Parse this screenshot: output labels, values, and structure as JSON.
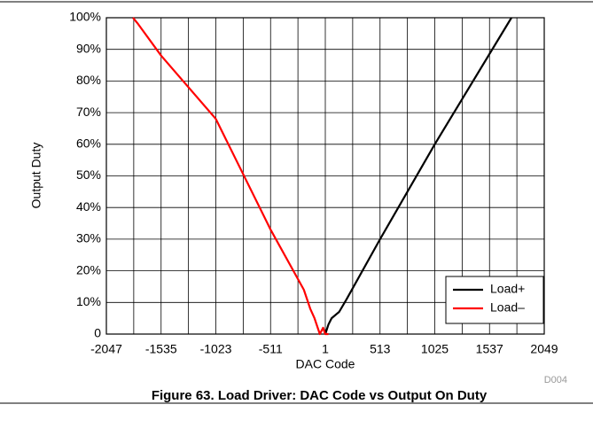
{
  "chart_data": {
    "type": "line",
    "caption": "Figure 63. Load Driver: DAC Code vs Output On Duty",
    "figure_id": "D004",
    "x_label": "DAC Code",
    "y_label": "Output Duty",
    "xlim": [
      -2047,
      2049
    ],
    "xticks": [
      -2047,
      -1535,
      -1023,
      -511,
      1,
      513,
      1025,
      1537,
      2049
    ],
    "xminor": [
      -1791,
      -1279,
      -767,
      -255,
      257,
      769,
      1281,
      1793
    ],
    "ylim": [
      0,
      100
    ],
    "yticks": [
      0,
      {
        "value": 10,
        "label": "10%"
      },
      {
        "value": 20,
        "label": "20%"
      },
      {
        "value": 30,
        "label": "30%"
      },
      {
        "value": 40,
        "label": "40%"
      },
      {
        "value": 50,
        "label": "50%"
      },
      {
        "value": 60,
        "label": "60%"
      },
      {
        "value": 70,
        "label": "70%"
      },
      {
        "value": 80,
        "label": "80%"
      },
      {
        "value": 90,
        "label": "90%"
      },
      {
        "value": 100,
        "label": "100%"
      }
    ],
    "grid": true,
    "legend": "lower right",
    "series": [
      {
        "name": "Load+",
        "color": "#000000",
        "x": [
          1,
          30,
          60,
          130,
          200,
          513,
          1025,
          1742
        ],
        "values": [
          0,
          3,
          5,
          7,
          11,
          30,
          60,
          100
        ]
      },
      {
        "name": "Load–",
        "color": "#ff0000",
        "x": [
          -1798,
          -1750,
          -1535,
          -1023,
          -511,
          -200,
          -140,
          -100,
          -60,
          -50,
          -20,
          0,
          30
        ],
        "values": [
          100,
          98,
          88,
          68,
          33,
          14,
          8,
          5,
          1,
          0,
          2,
          0,
          0
        ]
      }
    ]
  }
}
